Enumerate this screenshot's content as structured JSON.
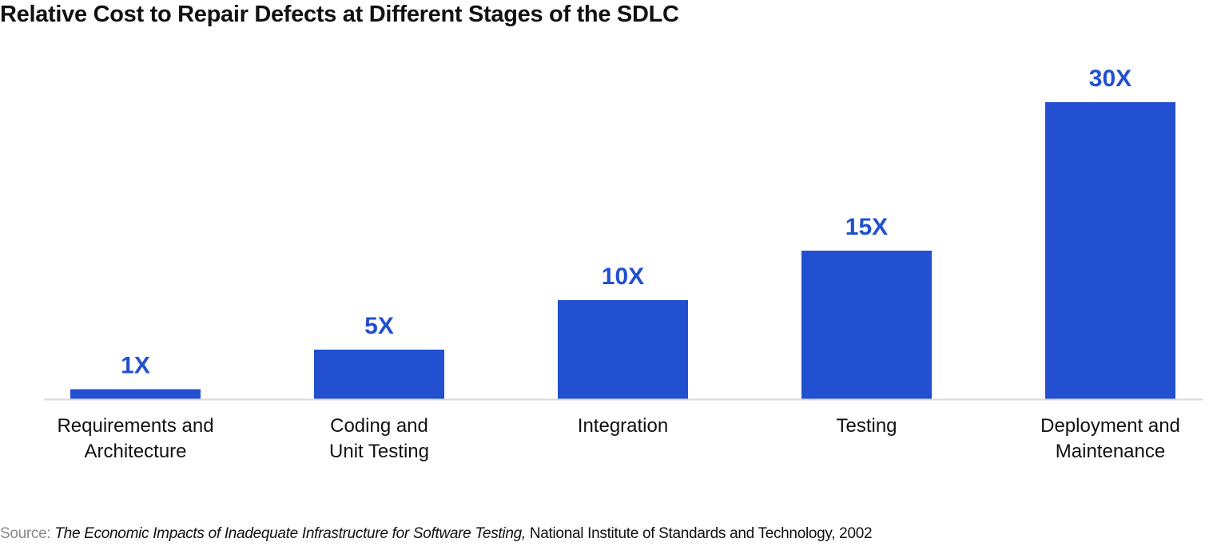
{
  "chart_data": {
    "type": "bar",
    "title": "Relative Cost to Repair Defects at Different Stages of the SDLC",
    "categories": [
      [
        "Requirements and",
        "Architecture"
      ],
      [
        "Coding and",
        "Unit Testing"
      ],
      [
        "Integration"
      ],
      [
        "Testing"
      ],
      [
        "Deployment and",
        "Maintenance"
      ]
    ],
    "values": [
      1,
      5,
      10,
      15,
      30
    ],
    "data_labels": [
      "1X",
      "5X",
      "10X",
      "15X",
      "30X"
    ],
    "xlabel": "",
    "ylabel": "",
    "ylim": [
      0,
      30
    ],
    "grid": false,
    "legend": "none",
    "colors": {
      "bar": "#2250D0",
      "label": "#2250D0",
      "axis": "#d9d9d9",
      "text": "#111111"
    }
  },
  "source": {
    "label": "Source:",
    "title": "The Economic Impacts of Inadequate Infrastructure for Software Testing,",
    "rest": "National Institute of Standards and Technology, 2002"
  }
}
